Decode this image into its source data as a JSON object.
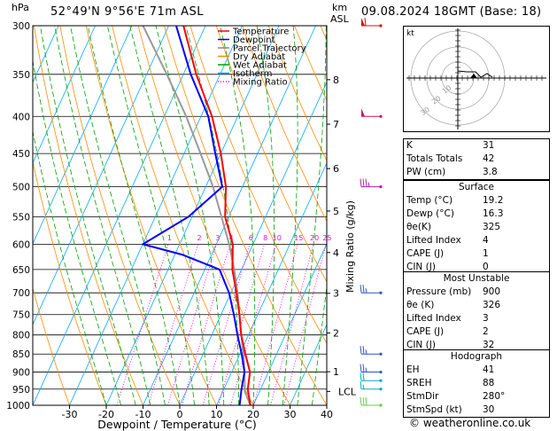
{
  "header": {
    "hpa_label": "hPa",
    "location": "52°49'N 9°56'E 71m ASL",
    "km_label": "km",
    "asl_label": "ASL",
    "datetime": "09.08.2024 18GMT (Base: 18)"
  },
  "footer": {
    "credit": "© weatheronline.co.uk"
  },
  "legend": [
    {
      "label": "Temperature",
      "color": "#ff0000",
      "dash": "solid"
    },
    {
      "label": "Dewpoint",
      "color": "#0000ff",
      "dash": "solid"
    },
    {
      "label": "Parcel Trajectory",
      "color": "#888888",
      "dash": "solid"
    },
    {
      "label": "Dry Adiabat",
      "color": "#ff8c00",
      "dash": "solid"
    },
    {
      "label": "Wet Adiabat",
      "color": "#00a000",
      "dash": "solid"
    },
    {
      "label": "Isotherm",
      "color": "#00aaff",
      "dash": "solid"
    },
    {
      "label": "Mixing Ratio",
      "color": "#ff00ff",
      "dash": "dotted"
    }
  ],
  "colors": {
    "temperature": "#ff0000",
    "dewpoint": "#0000ff",
    "parcel": "#999999",
    "dry_adiabat": "#ff8c00",
    "wet_adiabat": "#00a000",
    "isotherm": "#00aaff",
    "mixing_ratio": "#ff00ff"
  },
  "chart_data": {
    "type": "line",
    "title": "52°49'N 9°56'E 71m ASL",
    "xlabel": "Dewpoint / Temperature (°C)",
    "ylabel": "hPa",
    "y2label": "Mixing Ratio (g/kg)",
    "xlim": [
      -40,
      40
    ],
    "ylim": [
      1000,
      300
    ],
    "skew": 47,
    "x_ticks": [
      -30,
      -20,
      -10,
      0,
      10,
      20,
      30,
      40
    ],
    "pressure_levels": [
      300,
      350,
      400,
      450,
      500,
      550,
      600,
      650,
      700,
      750,
      800,
      850,
      900,
      950,
      1000
    ],
    "km_ticks": [
      {
        "label": "8",
        "p": 356
      },
      {
        "label": "7",
        "p": 410
      },
      {
        "label": "6",
        "p": 472
      },
      {
        "label": "5",
        "p": 540
      },
      {
        "label": "4",
        "p": 616
      },
      {
        "label": "3",
        "p": 701
      },
      {
        "label": "2",
        "p": 795
      },
      {
        "label": "1",
        "p": 899
      },
      {
        "label": "LCL",
        "p": 957
      }
    ],
    "mixing_ratio_labels": [
      "1",
      "2",
      "3",
      "4",
      "6",
      "8",
      "10",
      "15",
      "20",
      "25"
    ],
    "mixing_ratio_values": [
      1,
      2,
      3,
      4,
      6,
      8,
      10,
      15,
      20,
      25
    ],
    "mixing_ratio_label_p": 593,
    "series": [
      {
        "name": "Temperature",
        "points": [
          [
            1000,
            19.2
          ],
          [
            950,
            16.5
          ],
          [
            900,
            15.0
          ],
          [
            850,
            11.5
          ],
          [
            800,
            8.0
          ],
          [
            750,
            5.0
          ],
          [
            700,
            1.5
          ],
          [
            650,
            -2.5
          ],
          [
            600,
            -5.5
          ],
          [
            550,
            -11.0
          ],
          [
            500,
            -14.5
          ],
          [
            450,
            -20.0
          ],
          [
            400,
            -27.0
          ],
          [
            350,
            -36.5
          ],
          [
            300,
            -46.0
          ]
        ]
      },
      {
        "name": "Dewpoint",
        "points": [
          [
            1000,
            16.3
          ],
          [
            950,
            14.8
          ],
          [
            900,
            13.5
          ],
          [
            850,
            10.5
          ],
          [
            800,
            7.0
          ],
          [
            750,
            3.5
          ],
          [
            700,
            -0.5
          ],
          [
            650,
            -6.0
          ],
          [
            620,
            -18.0
          ],
          [
            600,
            -30.0
          ],
          [
            550,
            -21.0
          ],
          [
            500,
            -15.5
          ],
          [
            450,
            -21.5
          ],
          [
            400,
            -28.0
          ],
          [
            350,
            -38.0
          ],
          [
            300,
            -48.0
          ]
        ]
      },
      {
        "name": "Parcel Trajectory",
        "points": [
          [
            1000,
            19.2
          ],
          [
            957,
            16.0
          ],
          [
            900,
            13.5
          ],
          [
            850,
            11.0
          ],
          [
            800,
            8.0
          ],
          [
            750,
            5.0
          ],
          [
            700,
            1.8
          ],
          [
            650,
            -2.0
          ],
          [
            600,
            -6.5
          ],
          [
            550,
            -12.0
          ],
          [
            500,
            -18.0
          ],
          [
            450,
            -25.5
          ],
          [
            400,
            -34.0
          ],
          [
            350,
            -44.5
          ],
          [
            300,
            -57.0
          ]
        ]
      }
    ]
  },
  "wind_barbs": [
    {
      "p": 1000,
      "speed_kt": 30,
      "color": "#66cc44"
    },
    {
      "p": 950,
      "speed_kt": 15,
      "color": "#00aacc"
    },
    {
      "p": 925,
      "speed_kt": 20,
      "color": "#00aacc"
    },
    {
      "p": 900,
      "speed_kt": 25,
      "color": "#3355cc"
    },
    {
      "p": 850,
      "speed_kt": 25,
      "color": "#3355cc"
    },
    {
      "p": 700,
      "speed_kt": 25,
      "color": "#3355cc"
    },
    {
      "p": 500,
      "speed_kt": 35,
      "color": "#aa22aa"
    },
    {
      "p": 400,
      "speed_kt": 50,
      "color": "#cc1166"
    },
    {
      "p": 300,
      "speed_kt": 60,
      "color": "#cc1111"
    }
  ],
  "hodograph": {
    "unit_label": "kt",
    "ring_labels": [
      "10",
      "20",
      "30"
    ]
  },
  "indices": [
    {
      "label": "K",
      "value": "31"
    },
    {
      "label": "Totals Totals",
      "value": "42"
    },
    {
      "label": "PW (cm)",
      "value": "3.8"
    }
  ],
  "surface": {
    "title": "Surface",
    "rows": [
      {
        "label": "Temp (°C)",
        "value": "19.2"
      },
      {
        "label": "Dewp (°C)",
        "value": "16.3"
      },
      {
        "label": "θe(K)",
        "value": "325"
      },
      {
        "label": "Lifted Index",
        "value": "4"
      },
      {
        "label": "CAPE (J)",
        "value": "1"
      },
      {
        "label": "CIN (J)",
        "value": "0"
      }
    ]
  },
  "most_unstable": {
    "title": "Most Unstable",
    "rows": [
      {
        "label": "Pressure (mb)",
        "value": "900"
      },
      {
        "label": "θe (K)",
        "value": "326"
      },
      {
        "label": "Lifted Index",
        "value": "3"
      },
      {
        "label": "CAPE (J)",
        "value": "2"
      },
      {
        "label": "CIN (J)",
        "value": "32"
      }
    ]
  },
  "hodograph_table": {
    "title": "Hodograph",
    "rows": [
      {
        "label": "EH",
        "value": "41"
      },
      {
        "label": "SREH",
        "value": "88"
      },
      {
        "label": "StmDir",
        "value": "280°"
      },
      {
        "label": "StmSpd (kt)",
        "value": "30"
      }
    ]
  }
}
